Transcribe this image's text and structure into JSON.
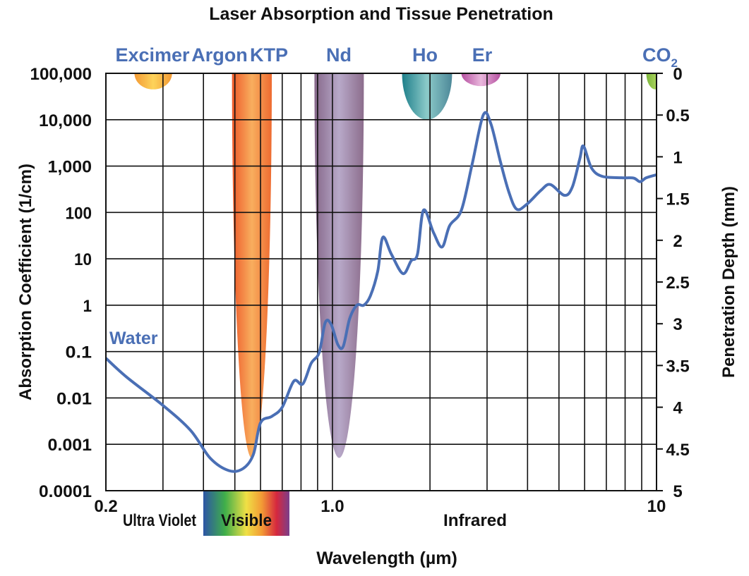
{
  "chart_data": {
    "type": "line",
    "title": "Laser Absorption and Tissue Penetration",
    "xlabel": "Wavelength (µm)",
    "ylabel": "Absorption Coefficient (1/cm)",
    "y2label": "Penetration Depth (mm)",
    "x_scale": "log",
    "y_scale": "log",
    "xlim": [
      0.2,
      10
    ],
    "ylim": [
      0.0001,
      100000
    ],
    "y2lim": [
      0,
      5
    ],
    "grid": true,
    "x_tick_labels": [
      {
        "value": 0.2,
        "label": "0.2"
      },
      {
        "value": 1.0,
        "label": "1.0"
      },
      {
        "value": 10,
        "label": "10"
      }
    ],
    "x_gridlines": [
      0.3,
      0.4,
      0.5,
      0.6,
      0.7,
      0.8,
      0.9,
      1,
      2,
      3,
      4,
      5,
      6,
      7,
      8,
      9
    ],
    "y_ticks": [
      {
        "value": 100000,
        "label": "100,000"
      },
      {
        "value": 10000,
        "label": "10,000"
      },
      {
        "value": 1000,
        "label": "1,000"
      },
      {
        "value": 100,
        "label": "100"
      },
      {
        "value": 10,
        "label": "10"
      },
      {
        "value": 1,
        "label": "1"
      },
      {
        "value": 0.1,
        "label": "0.1"
      },
      {
        "value": 0.01,
        "label": "0.01"
      },
      {
        "value": 0.001,
        "label": "0.001"
      },
      {
        "value": 0.0001,
        "label": "0.0001"
      }
    ],
    "y2_ticks": [
      {
        "value": 0,
        "label": "0"
      },
      {
        "value": 0.5,
        "label": "0.5"
      },
      {
        "value": 1,
        "label": "1"
      },
      {
        "value": 1.5,
        "label": "1.5"
      },
      {
        "value": 2,
        "label": "2"
      },
      {
        "value": 2.5,
        "label": "2.5"
      },
      {
        "value": 3,
        "label": "3"
      },
      {
        "value": 3.5,
        "label": "3.5"
      },
      {
        "value": 4,
        "label": "4"
      },
      {
        "value": 4.5,
        "label": "4.5"
      },
      {
        "value": 5,
        "label": "5"
      }
    ],
    "region_labels": {
      "uv": "Ultra Violet",
      "visible": "Visible",
      "ir": "Infrared"
    },
    "series": [
      {
        "name": "Water",
        "color": "#4a6fb5",
        "x": [
          0.2,
          0.232,
          0.3,
          0.365,
          0.42,
          0.48,
          0.53,
          0.57,
          0.6,
          0.65,
          0.7,
          0.76,
          0.81,
          0.86,
          0.91,
          0.95,
          0.99,
          1.04,
          1.08,
          1.13,
          1.19,
          1.25,
          1.31,
          1.38,
          1.43,
          1.52,
          1.65,
          1.75,
          1.83,
          1.91,
          2.05,
          2.18,
          2.3,
          2.5,
          2.7,
          2.92,
          3.08,
          3.3,
          3.5,
          3.7,
          3.97,
          4.4,
          4.7,
          5.2,
          5.5,
          5.8,
          5.95,
          6.3,
          6.8,
          7.8,
          8.5,
          8.9,
          9.3,
          10
        ],
        "y": [
          0.072,
          0.028,
          0.0069,
          0.002,
          0.0005,
          0.00027,
          0.0003,
          0.0006,
          0.0029,
          0.004,
          0.0063,
          0.023,
          0.02,
          0.056,
          0.095,
          0.42,
          0.39,
          0.14,
          0.13,
          0.51,
          1.0,
          1.0,
          1.6,
          5.4,
          29,
          12.6,
          4.8,
          9.1,
          12.6,
          112,
          37,
          18,
          52,
          112,
          1120,
          12600,
          8300,
          1230,
          280,
          118,
          148,
          300,
          400,
          234,
          355,
          1450,
          2700,
          910,
          600,
          560,
          550,
          460,
          560,
          650
        ]
      }
    ],
    "lasers": [
      {
        "name": "Excimer",
        "x_range": [
          0.245,
          0.32
        ],
        "deepest_absorption": 45000,
        "colors": [
          "#f39a35",
          "#fdd35a",
          "#f39a35"
        ]
      },
      {
        "name": "Argon",
        "x_range": [
          0.49,
          0.65
        ],
        "deepest_absorption": 0.0005,
        "colors": [
          "#ee5a2a",
          "#f8ae5e",
          "#ee6a30"
        ]
      },
      {
        "name": "KTP",
        "x_range": null
      },
      {
        "name": "Nd",
        "x_range": [
          0.88,
          1.25
        ],
        "deepest_absorption": 0.0005,
        "colors": [
          "#86688a",
          "#b8a9c9",
          "#8c6d8c"
        ]
      },
      {
        "name": "Ho",
        "x_range": [
          1.64,
          2.34
        ],
        "deepest_absorption": 10000,
        "colors": [
          "#1e7f8a",
          "#8ccac9",
          "#4d8898"
        ]
      },
      {
        "name": "Er",
        "x_range": [
          2.5,
          3.3
        ],
        "deepest_absorption": 53000,
        "colors": [
          "#b54fa0",
          "#e9b7dc",
          "#b54fa0"
        ]
      },
      {
        "name": "CO",
        "subscript": "2",
        "x_range": [
          9.3,
          10.6
        ],
        "deepest_absorption": 45000,
        "colors": [
          "#7bb53a",
          "#a6d15a",
          "#7bb53a"
        ]
      }
    ],
    "label_color": "#4a6fb5"
  }
}
